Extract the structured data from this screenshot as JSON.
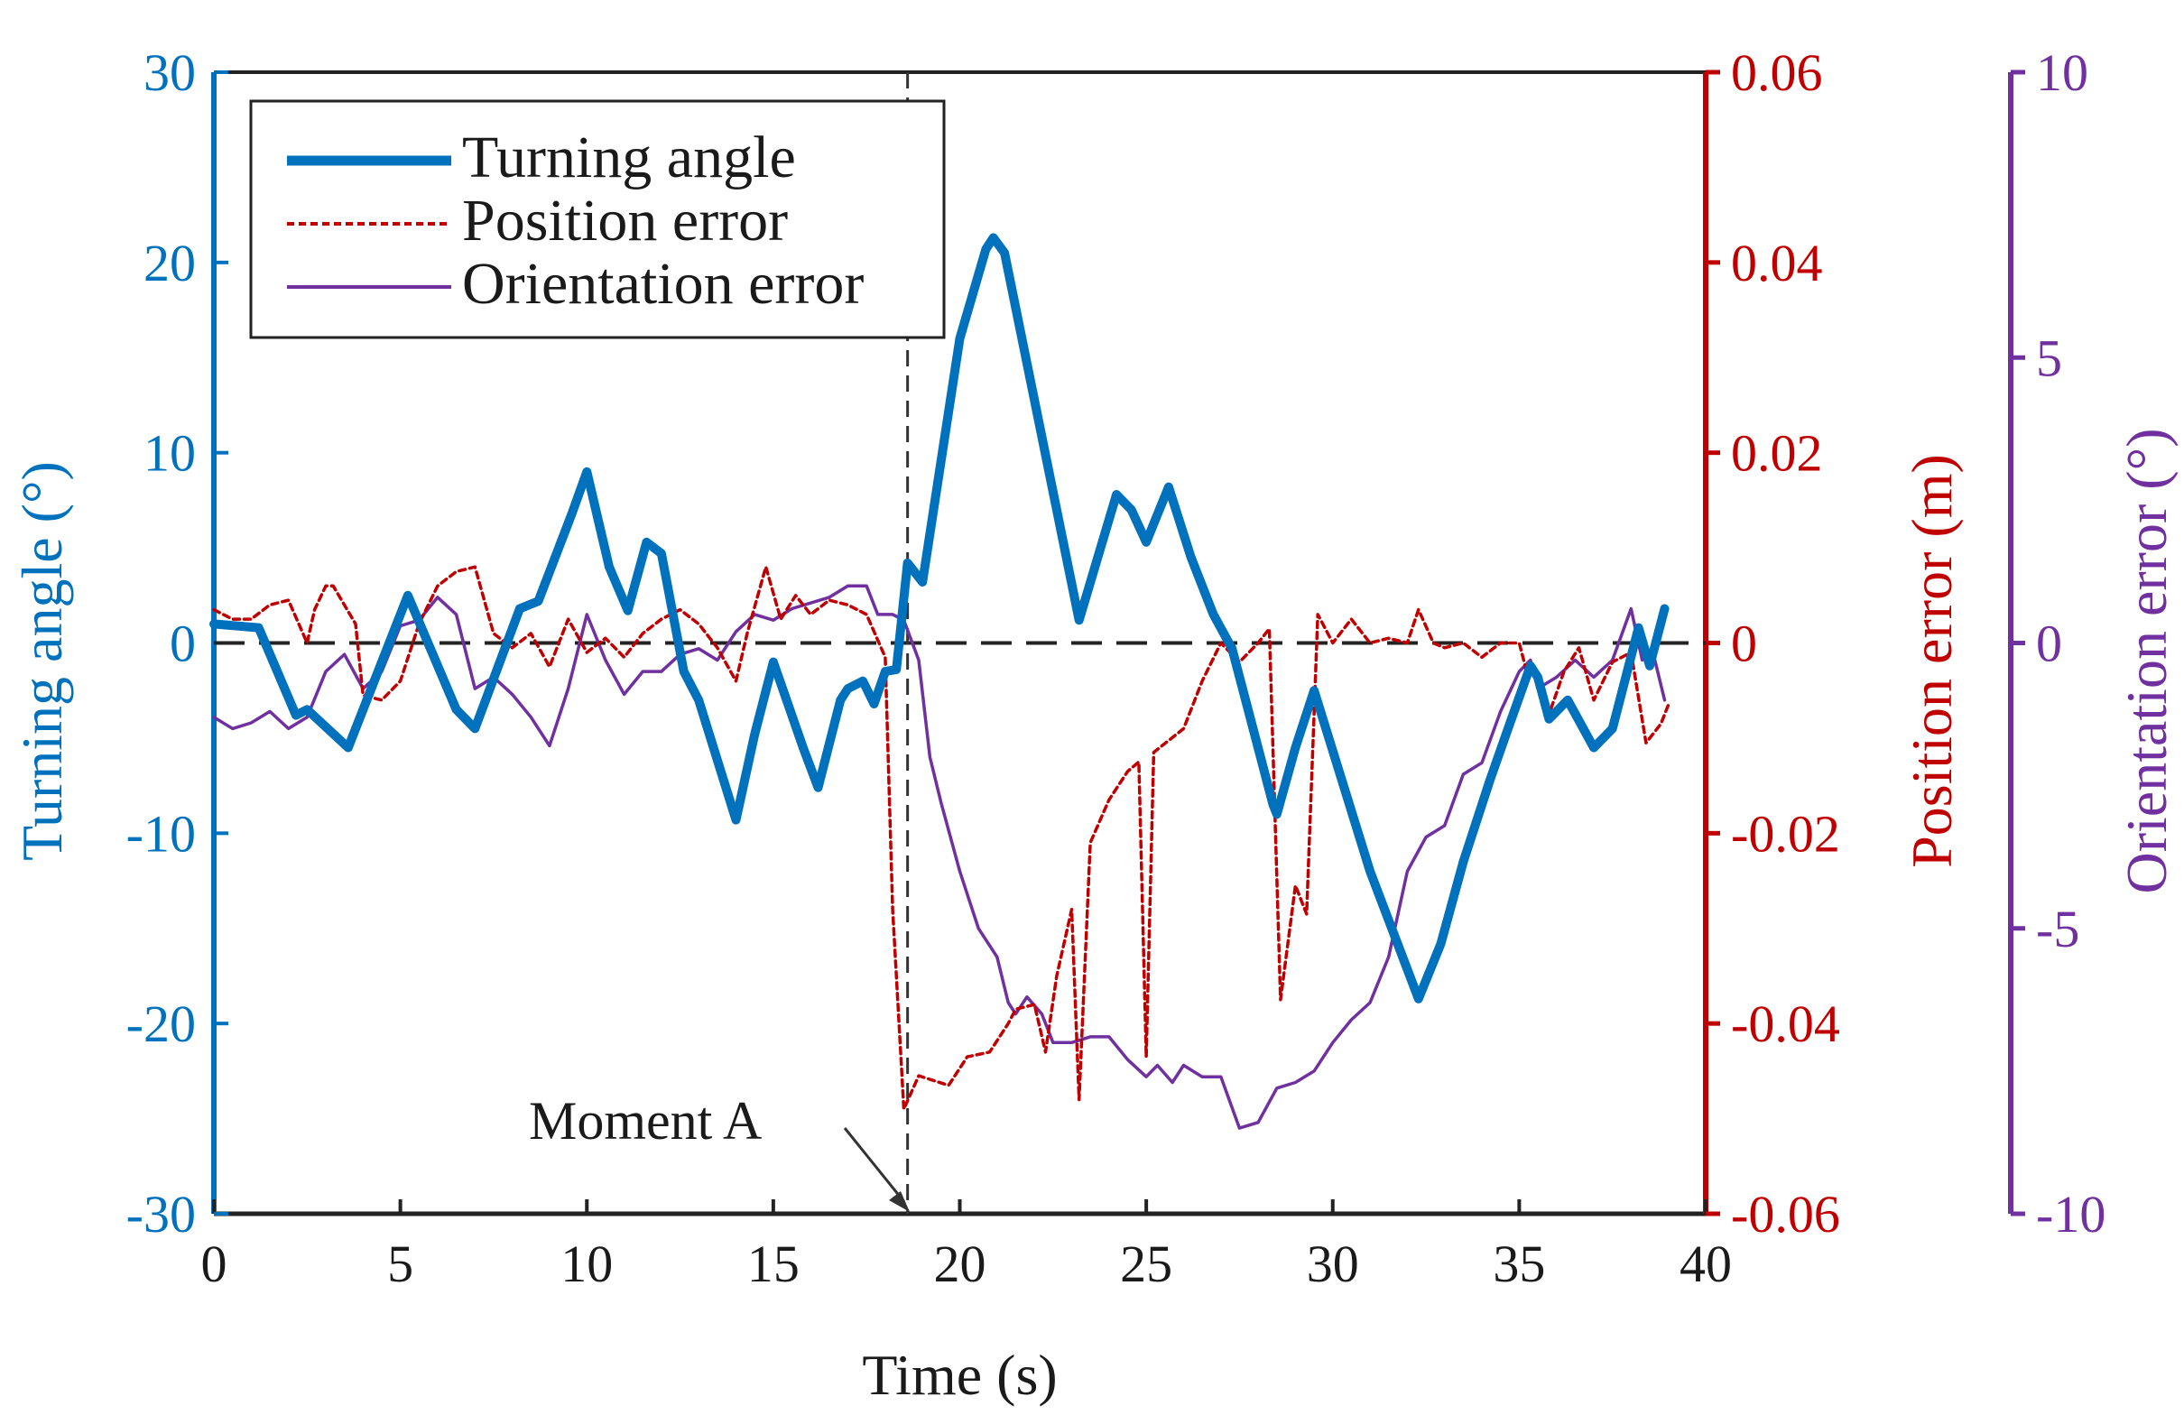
{
  "chart_data": {
    "type": "line",
    "xlabel": "Time (s)",
    "xlim": [
      0,
      40
    ],
    "xticks": [
      0,
      5,
      10,
      15,
      20,
      25,
      30,
      35,
      40
    ],
    "axes": {
      "left": {
        "label": "Turning angle (°)",
        "lim": [
          -30,
          30
        ],
        "ticks": [
          -30,
          -20,
          -10,
          0,
          10,
          20,
          30
        ],
        "tick_labels": [
          "-30",
          "-20",
          "-10",
          "0",
          "10",
          "20",
          "30"
        ],
        "color": "#0072BD"
      },
      "right1": {
        "label": "Position error (m)",
        "lim": [
          -0.06,
          0.06
        ],
        "ticks": [
          -0.06,
          -0.04,
          -0.02,
          0,
          0.02,
          0.04,
          0.06
        ],
        "tick_labels": [
          "-0.06",
          "-0.04",
          "-0.02",
          "0",
          "0.02",
          "0.04",
          "0.06"
        ],
        "color": "#C00000"
      },
      "right2": {
        "label": "Orientation error (°)",
        "lim": [
          -10,
          10
        ],
        "ticks": [
          -10,
          -5,
          0,
          5,
          10
        ],
        "tick_labels": [
          "-10",
          "-5",
          "0",
          "5",
          "10"
        ],
        "color": "#7030A0"
      }
    },
    "legend": {
      "position": "top-left",
      "entries": [
        "Turning angle",
        "Position error",
        "Orientation error"
      ]
    },
    "annotations": [
      {
        "text": "Moment A",
        "x": 18.6,
        "y": -30
      }
    ],
    "reference_lines": {
      "zero_line_y": 0,
      "vertical_line_x": 18.6
    },
    "series": [
      {
        "name": "Turning angle",
        "axis": "left",
        "style": "solid-thick",
        "color": "#0072BD",
        "points": [
          [
            0,
            1
          ],
          [
            1.2,
            0.8
          ],
          [
            2.2,
            -3.8
          ],
          [
            2.5,
            -3.5
          ],
          [
            3.6,
            -5.5
          ],
          [
            5.2,
            2.5
          ],
          [
            6.5,
            -3.5
          ],
          [
            7,
            -4.5
          ],
          [
            8.2,
            1.8
          ],
          [
            8.7,
            2.2
          ],
          [
            9.6,
            6.8
          ],
          [
            10,
            9
          ],
          [
            10.6,
            4
          ],
          [
            11.1,
            1.7
          ],
          [
            11.6,
            5.3
          ],
          [
            12,
            4.7
          ],
          [
            12.6,
            -1.5
          ],
          [
            13,
            -3
          ],
          [
            14,
            -9.3
          ],
          [
            14.5,
            -4.8
          ],
          [
            15,
            -1
          ],
          [
            15.8,
            -5.5
          ],
          [
            16.2,
            -7.6
          ],
          [
            16.8,
            -3
          ],
          [
            17,
            -2.4
          ],
          [
            17.4,
            -2
          ],
          [
            17.7,
            -3.2
          ],
          [
            18,
            -1.5
          ],
          [
            18.3,
            -1.4
          ],
          [
            18.6,
            4.2
          ],
          [
            19,
            3.2
          ],
          [
            20,
            16
          ],
          [
            20.7,
            20.7
          ],
          [
            20.9,
            21.3
          ],
          [
            21.2,
            20.5
          ],
          [
            23.2,
            1.2
          ],
          [
            24.2,
            7.8
          ],
          [
            24.6,
            7
          ],
          [
            25,
            5.3
          ],
          [
            25.6,
            8.2
          ],
          [
            26.2,
            4.5
          ],
          [
            26.8,
            1.5
          ],
          [
            27.3,
            -0.3
          ],
          [
            28.4,
            -8.5
          ],
          [
            28.5,
            -9
          ],
          [
            29,
            -5.5
          ],
          [
            29.5,
            -2.5
          ],
          [
            31,
            -12
          ],
          [
            32.3,
            -18.7
          ],
          [
            32.9,
            -15.8
          ],
          [
            33.5,
            -11.5
          ],
          [
            34.2,
            -7.3
          ],
          [
            34.7,
            -4.5
          ],
          [
            35.3,
            -1.2
          ],
          [
            35.5,
            -1.8
          ],
          [
            35.8,
            -4
          ],
          [
            36.3,
            -3
          ],
          [
            37,
            -5.5
          ],
          [
            37.5,
            -4.5
          ],
          [
            38.2,
            0.8
          ],
          [
            38.5,
            -1.2
          ],
          [
            38.9,
            1.8
          ]
        ]
      },
      {
        "name": "Position error",
        "axis": "right1",
        "style": "dotted",
        "color": "#C00000",
        "points": [
          [
            0,
            0.0035
          ],
          [
            0.5,
            0.0025
          ],
          [
            1,
            0.0025
          ],
          [
            1.5,
            0.004
          ],
          [
            2,
            0.0045
          ],
          [
            2.5,
            0
          ],
          [
            2.7,
            0.0035
          ],
          [
            3,
            0.006
          ],
          [
            3.2,
            0.006
          ],
          [
            3.8,
            0.002
          ],
          [
            4,
            -0.0055
          ],
          [
            4.5,
            -0.006
          ],
          [
            5,
            -0.004
          ],
          [
            5.5,
            0.002
          ],
          [
            6,
            0.006
          ],
          [
            6.5,
            0.0075
          ],
          [
            7,
            0.008
          ],
          [
            7.5,
            0.001
          ],
          [
            8,
            -0.0005
          ],
          [
            8.5,
            0.001
          ],
          [
            9,
            -0.0025
          ],
          [
            9.5,
            0.0025
          ],
          [
            10,
            -0.001
          ],
          [
            10.5,
            0.0005
          ],
          [
            11,
            -0.0015
          ],
          [
            11.5,
            0.001
          ],
          [
            12,
            0.0025
          ],
          [
            12.5,
            0.0035
          ],
          [
            13,
            0.002
          ],
          [
            13.5,
            -0.0005
          ],
          [
            14,
            -0.004
          ],
          [
            14.3,
            0.001
          ],
          [
            14.8,
            0.008
          ],
          [
            15.2,
            0.0025
          ],
          [
            15.6,
            0.005
          ],
          [
            16,
            0.003
          ],
          [
            16.5,
            0.0045
          ],
          [
            17,
            0.004
          ],
          [
            17.5,
            0.003
          ],
          [
            18,
            -0.0015
          ],
          [
            18.2,
            -0.028
          ],
          [
            18.5,
            -0.049
          ],
          [
            18.9,
            -0.0455
          ],
          [
            19.3,
            -0.046
          ],
          [
            19.7,
            -0.0465
          ],
          [
            20.2,
            -0.0435
          ],
          [
            20.8,
            -0.043
          ],
          [
            21.3,
            -0.04
          ],
          [
            21.5,
            -0.0385
          ],
          [
            22,
            -0.038
          ],
          [
            22.3,
            -0.043
          ],
          [
            22.6,
            -0.035
          ],
          [
            23,
            -0.028
          ],
          [
            23.2,
            -0.048
          ],
          [
            23.5,
            -0.021
          ],
          [
            24,
            -0.0165
          ],
          [
            24.5,
            -0.0135
          ],
          [
            24.8,
            -0.0125
          ],
          [
            25,
            -0.0435
          ],
          [
            25.2,
            -0.0115
          ],
          [
            26,
            -0.009
          ],
          [
            26.5,
            -0.004
          ],
          [
            27,
            0
          ],
          [
            27.5,
            -0.002
          ],
          [
            28,
            0
          ],
          [
            28.3,
            0.0015
          ],
          [
            28.6,
            -0.0375
          ],
          [
            29,
            -0.0255
          ],
          [
            29.3,
            -0.0285
          ],
          [
            29.6,
            0.003
          ],
          [
            30,
            0
          ],
          [
            30.5,
            0.0025
          ],
          [
            31,
            0
          ],
          [
            31.5,
            0.0005
          ],
          [
            32,
            0
          ],
          [
            32.3,
            0.0035
          ],
          [
            32.7,
            0
          ],
          [
            33,
            -0.0005
          ],
          [
            33.5,
            0
          ],
          [
            34,
            -0.0015
          ],
          [
            34.5,
            0
          ],
          [
            35,
            0
          ],
          [
            35.2,
            -0.003
          ],
          [
            35.5,
            -0.0035
          ],
          [
            35.8,
            -0.0075
          ],
          [
            36.2,
            -0.003
          ],
          [
            36.6,
            -0.0005
          ],
          [
            37,
            -0.006
          ],
          [
            37.5,
            -0.002
          ],
          [
            38,
            -0.001
          ],
          [
            38.4,
            -0.0105
          ],
          [
            38.8,
            -0.0085
          ],
          [
            39,
            -0.0065
          ]
        ]
      },
      {
        "name": "Orientation error",
        "axis": "right2",
        "style": "solid-thin",
        "color": "#7030A0",
        "points": [
          [
            0,
            -1.3
          ],
          [
            0.5,
            -1.5
          ],
          [
            1,
            -1.4
          ],
          [
            1.5,
            -1.2
          ],
          [
            2,
            -1.5
          ],
          [
            2.5,
            -1.3
          ],
          [
            3,
            -0.5
          ],
          [
            3.5,
            -0.2
          ],
          [
            4,
            -0.8
          ],
          [
            4.5,
            -0.5
          ],
          [
            5,
            0.3
          ],
          [
            5.5,
            0.4
          ],
          [
            6,
            0.8
          ],
          [
            6.5,
            0.5
          ],
          [
            7,
            -0.8
          ],
          [
            7.5,
            -0.6
          ],
          [
            8,
            -0.9
          ],
          [
            8.5,
            -1.3
          ],
          [
            9,
            -1.8
          ],
          [
            9.5,
            -0.8
          ],
          [
            10,
            0.5
          ],
          [
            10.5,
            -0.3
          ],
          [
            11,
            -0.9
          ],
          [
            11.5,
            -0.5
          ],
          [
            12,
            -0.5
          ],
          [
            12.5,
            -0.2
          ],
          [
            13,
            -0.1
          ],
          [
            13.5,
            -0.3
          ],
          [
            14,
            0.2
          ],
          [
            14.5,
            0.5
          ],
          [
            15,
            0.4
          ],
          [
            15.5,
            0.6
          ],
          [
            16,
            0.7
          ],
          [
            16.5,
            0.8
          ],
          [
            17,
            1
          ],
          [
            17.5,
            1
          ],
          [
            17.8,
            0.5
          ],
          [
            18.2,
            0.5
          ],
          [
            18.5,
            0.4
          ],
          [
            18.9,
            -0.3
          ],
          [
            19.2,
            -2
          ],
          [
            19.5,
            -2.8
          ],
          [
            20,
            -4
          ],
          [
            20.5,
            -5
          ],
          [
            21,
            -5.5
          ],
          [
            21.3,
            -6.3
          ],
          [
            21.5,
            -6.5
          ],
          [
            21.8,
            -6.2
          ],
          [
            22.2,
            -6.5
          ],
          [
            22.5,
            -7
          ],
          [
            23,
            -7
          ],
          [
            23.5,
            -6.9
          ],
          [
            24,
            -6.9
          ],
          [
            24.5,
            -7.3
          ],
          [
            25,
            -7.6
          ],
          [
            25.3,
            -7.4
          ],
          [
            25.7,
            -7.7
          ],
          [
            26,
            -7.4
          ],
          [
            26.5,
            -7.6
          ],
          [
            27,
            -7.6
          ],
          [
            27.5,
            -8.5
          ],
          [
            28,
            -8.4
          ],
          [
            28.5,
            -7.8
          ],
          [
            29,
            -7.7
          ],
          [
            29.5,
            -7.5
          ],
          [
            30,
            -7
          ],
          [
            30.5,
            -6.6
          ],
          [
            31,
            -6.3
          ],
          [
            31.5,
            -5.5
          ],
          [
            32,
            -4
          ],
          [
            32.5,
            -3.4
          ],
          [
            33,
            -3.2
          ],
          [
            33.5,
            -2.3
          ],
          [
            34,
            -2.1
          ],
          [
            34.5,
            -1.2
          ],
          [
            35,
            -0.5
          ],
          [
            35.3,
            -0.3
          ],
          [
            35.5,
            -0.8
          ],
          [
            36,
            -0.6
          ],
          [
            36.5,
            -0.3
          ],
          [
            37,
            -0.6
          ],
          [
            37.5,
            -0.3
          ],
          [
            38,
            0.6
          ],
          [
            38.3,
            -0.3
          ],
          [
            38.6,
            -0.2
          ],
          [
            38.9,
            -1
          ]
        ]
      }
    ]
  }
}
